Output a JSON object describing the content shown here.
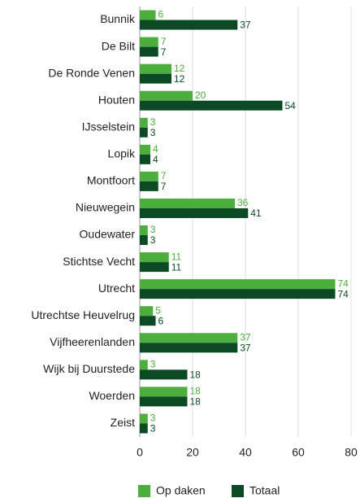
{
  "chart_data": {
    "type": "bar",
    "orientation": "horizontal",
    "categories": [
      "Bunnik",
      "De Bilt",
      "De Ronde Venen",
      "Houten",
      "IJsselstein",
      "Lopik",
      "Montfoort",
      "Nieuwegein",
      "Oudewater",
      "Stichtse Vecht",
      "Utrecht",
      "Utrechtse Heuvelrug",
      "Vijfheerenlanden",
      "Wijk bij Duurstede",
      "Woerden",
      "Zeist"
    ],
    "series": [
      {
        "name": "Op daken",
        "color": "#4cae3c",
        "values": [
          6,
          7,
          12,
          20,
          3,
          4,
          7,
          36,
          3,
          11,
          74,
          5,
          37,
          3,
          18,
          3
        ]
      },
      {
        "name": "Totaal",
        "color": "#0b4a24",
        "values": [
          37,
          7,
          12,
          54,
          3,
          4,
          7,
          41,
          3,
          11,
          74,
          6,
          37,
          18,
          18,
          3
        ]
      }
    ],
    "xlim": [
      0,
      80
    ],
    "xticks": [
      0,
      20,
      40,
      60,
      80
    ],
    "grid": true,
    "legend": "bottom"
  }
}
